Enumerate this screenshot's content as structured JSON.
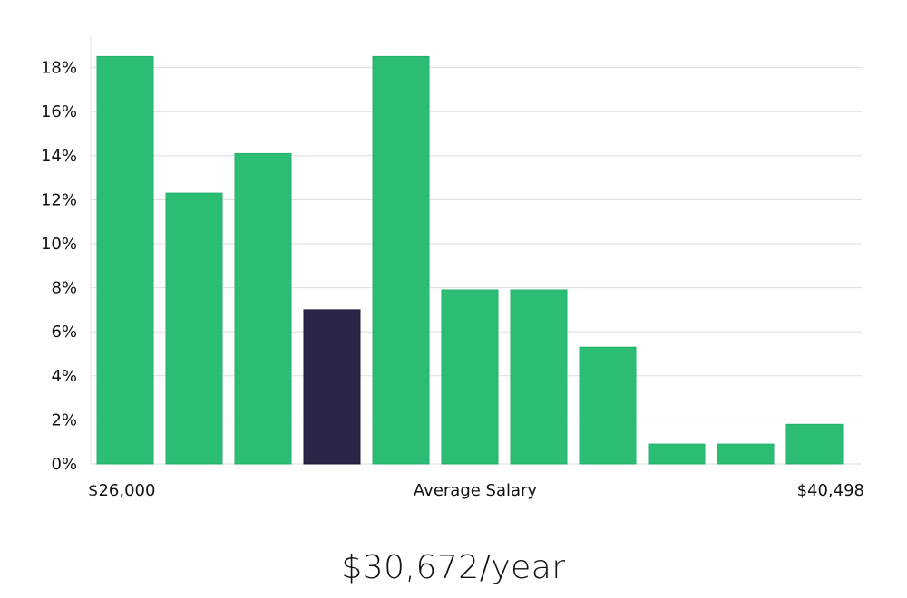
{
  "chart_data": {
    "type": "bar",
    "categories": [
      "1",
      "2",
      "3",
      "4",
      "5",
      "6",
      "7",
      "8",
      "9",
      "10",
      "11"
    ],
    "values": [
      18.5,
      12.3,
      14.1,
      7.0,
      18.5,
      7.9,
      7.9,
      5.3,
      0.9,
      0.9,
      1.8
    ],
    "highlight_index": 3,
    "y_ticks": [
      "0%",
      "2%",
      "4%",
      "6%",
      "8%",
      "10%",
      "12%",
      "14%",
      "16%",
      "18%"
    ],
    "ylim": [
      0,
      19.5
    ],
    "grid": true,
    "x_labels": {
      "left": "$26,000",
      "center": "Average Salary",
      "right": "$40,498"
    },
    "colors": {
      "bar": "#2bbd74",
      "highlight": "#2a2547",
      "grid": "#dddddd"
    }
  },
  "headline": "$30,672/year"
}
